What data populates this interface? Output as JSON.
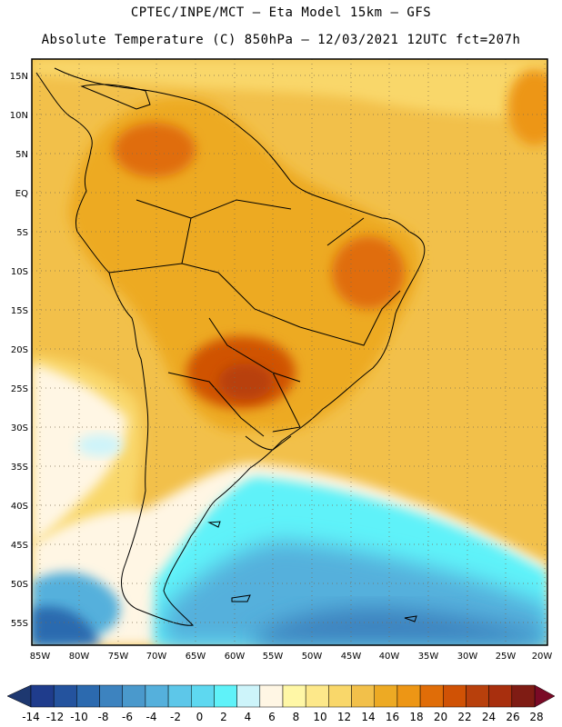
{
  "header": {
    "line1": "CPTEC/INPE/MCT –  Eta Model 15km – GFS",
    "line2": "Absolute Temperature (C) 850hPa – 12/03/2021 12UTC fct=207h"
  },
  "map": {
    "lat_labels": [
      "15N",
      "10N",
      "5N",
      "EQ",
      "5S",
      "10S",
      "15S",
      "20S",
      "25S",
      "30S",
      "35S",
      "40S",
      "45S",
      "50S",
      "55S"
    ],
    "lon_labels": [
      "85W",
      "80W",
      "75W",
      "70W",
      "65W",
      "60W",
      "55W",
      "50W",
      "45W",
      "40W",
      "35W",
      "30W",
      "25W",
      "20W"
    ],
    "region": "South America"
  },
  "colorbar": {
    "labels": [
      "-14",
      "-12",
      "-10",
      "-8",
      "-6",
      "-4",
      "-2",
      "0",
      "2",
      "4",
      "6",
      "8",
      "10",
      "12",
      "14",
      "16",
      "18",
      "20",
      "22",
      "24",
      "26",
      "28"
    ],
    "colors": [
      "#1f3c8c",
      "#24539e",
      "#2c6aaf",
      "#3d83bf",
      "#4a99cc",
      "#55b0dc",
      "#5dc7e9",
      "#5ed8f0",
      "#5ff2f9",
      "#cdf4fa",
      "#fff6e4",
      "#fff7a6",
      "#fde88a",
      "#f9d76a",
      "#f2c04a",
      "#edaa24",
      "#ed9615",
      "#e06d08",
      "#d05205",
      "#b8400c",
      "#a82f0e",
      "#7f1c14"
    ],
    "left_arrow_color": "#1e3870",
    "right_arrow_color": "#7a0a26"
  }
}
